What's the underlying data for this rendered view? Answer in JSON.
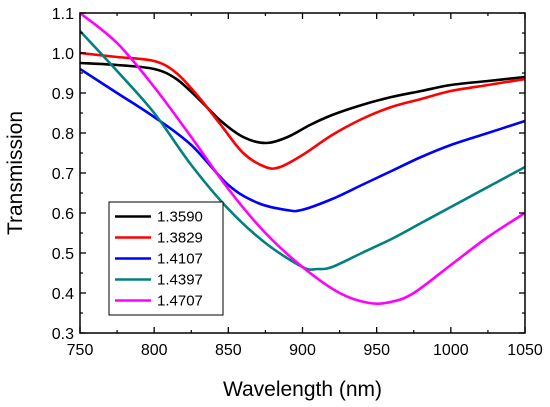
{
  "chart_data": {
    "type": "line",
    "title": "",
    "xlabel": "Wavelength (nm)",
    "ylabel": "Transmission",
    "xlim": [
      750,
      1050
    ],
    "ylim": [
      0.3,
      1.1
    ],
    "xticks": [
      750,
      800,
      850,
      900,
      950,
      1000,
      1050
    ],
    "yticks": [
      0.3,
      0.4,
      0.5,
      0.6,
      0.7,
      0.8,
      0.9,
      1.0,
      1.1
    ],
    "xtick_labels": [
      "750",
      "800",
      "850",
      "900",
      "950",
      "1000",
      "1050"
    ],
    "ytick_labels": [
      "0.3",
      "0.4",
      "0.5",
      "0.6",
      "0.7",
      "0.8",
      "0.9",
      "1.0",
      "1.1"
    ],
    "grid": false,
    "legend_position": "bottom-left",
    "series": [
      {
        "name": "1.3590",
        "color": "#000000",
        "x": [
          750,
          775,
          800,
          815,
          830,
          845,
          860,
          875,
          890,
          905,
          920,
          940,
          960,
          980,
          1000,
          1025,
          1050
        ],
        "y": [
          0.975,
          0.97,
          0.96,
          0.935,
          0.885,
          0.83,
          0.79,
          0.775,
          0.79,
          0.82,
          0.845,
          0.87,
          0.89,
          0.905,
          0.92,
          0.93,
          0.94
        ]
      },
      {
        "name": "1.3829",
        "color": "#ff0000",
        "x": [
          750,
          775,
          800,
          815,
          830,
          845,
          860,
          875,
          885,
          900,
          920,
          940,
          960,
          980,
          1000,
          1025,
          1050
        ],
        "y": [
          1.0,
          0.99,
          0.98,
          0.95,
          0.89,
          0.82,
          0.75,
          0.715,
          0.715,
          0.745,
          0.795,
          0.835,
          0.865,
          0.885,
          0.905,
          0.92,
          0.935
        ]
      },
      {
        "name": "1.4107",
        "color": "#0000ff",
        "x": [
          750,
          775,
          800,
          825,
          850,
          870,
          890,
          900,
          920,
          940,
          960,
          980,
          1000,
          1025,
          1050
        ],
        "y": [
          0.96,
          0.9,
          0.84,
          0.77,
          0.67,
          0.625,
          0.607,
          0.608,
          0.635,
          0.67,
          0.705,
          0.74,
          0.77,
          0.8,
          0.83
        ]
      },
      {
        "name": "1.4397",
        "color": "#008080",
        "x": [
          750,
          775,
          800,
          825,
          850,
          875,
          900,
          910,
          920,
          940,
          960,
          980,
          1000,
          1025,
          1050
        ],
        "y": [
          1.055,
          0.955,
          0.85,
          0.72,
          0.61,
          0.525,
          0.465,
          0.46,
          0.465,
          0.5,
          0.535,
          0.575,
          0.615,
          0.665,
          0.715
        ]
      },
      {
        "name": "1.4707",
        "color": "#ff00ff",
        "x": [
          750,
          775,
          800,
          825,
          850,
          875,
          900,
          925,
          945,
          960,
          975,
          1000,
          1025,
          1050
        ],
        "y": [
          1.1,
          1.025,
          0.915,
          0.79,
          0.66,
          0.55,
          0.465,
          0.4,
          0.375,
          0.378,
          0.4,
          0.47,
          0.54,
          0.6
        ]
      }
    ]
  }
}
